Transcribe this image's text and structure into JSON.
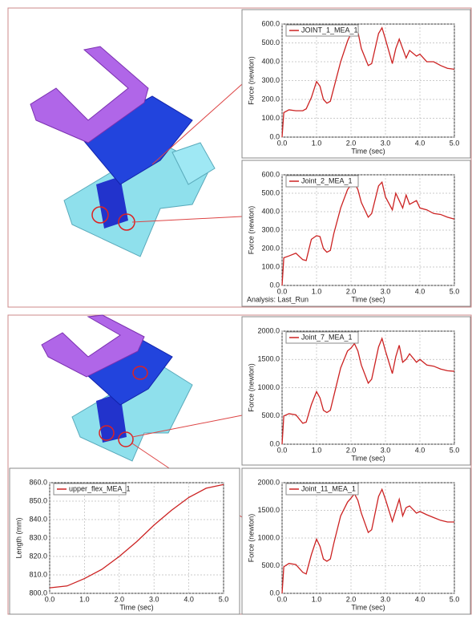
{
  "chart_data": [
    {
      "type": "line",
      "x_label": "Time (sec)",
      "y_label": "Force (newton)",
      "x": [
        0,
        0.05,
        0.2,
        0.4,
        0.6,
        0.7,
        0.85,
        1.0,
        1.1,
        1.2,
        1.3,
        1.4,
        1.5,
        1.7,
        1.9,
        2.0,
        2.1,
        2.2,
        2.3,
        2.5,
        2.6,
        2.8,
        2.9,
        3.0,
        3.2,
        3.3,
        3.4,
        3.5,
        3.6,
        3.7,
        3.9,
        4.0,
        4.2,
        4.4,
        4.6,
        4.8,
        5.0
      ],
      "series": [
        {
          "name": "JOINT_1_MEA_1",
          "color": "#cc2222",
          "values": [
            0,
            130,
            145,
            140,
            140,
            150,
            210,
            295,
            270,
            200,
            180,
            190,
            260,
            400,
            510,
            550,
            570,
            560,
            470,
            380,
            390,
            550,
            580,
            520,
            390,
            470,
            520,
            470,
            420,
            460,
            430,
            440,
            400,
            400,
            380,
            365,
            360
          ]
        }
      ],
      "xlim": [
        0,
        5
      ],
      "ylim": [
        0,
        600
      ],
      "grid": true,
      "xticks": [
        {
          "value": 0,
          "label": "0.0"
        },
        {
          "value": 1,
          "label": "1.0"
        },
        {
          "value": 2,
          "label": "2.0"
        },
        {
          "value": 3,
          "label": "3.0"
        },
        {
          "value": 4,
          "label": "4.0"
        },
        {
          "value": 5,
          "label": "5.0"
        }
      ],
      "yticks": [
        {
          "value": 0,
          "label": "0.0"
        },
        {
          "value": 100,
          "label": "100.0"
        },
        {
          "value": 200,
          "label": "200.0"
        },
        {
          "value": 300,
          "label": "300.0"
        },
        {
          "value": 400,
          "label": "400.0"
        },
        {
          "value": 500,
          "label": "500.0"
        },
        {
          "value": 600,
          "label": "600.0"
        }
      ]
    },
    {
      "type": "line",
      "x_label": "Time (sec)",
      "y_label": "Force (newton)",
      "annotation": "Analysis:  Last_Run",
      "x": [
        0,
        0.05,
        0.2,
        0.4,
        0.6,
        0.7,
        0.85,
        1.0,
        1.1,
        1.2,
        1.3,
        1.4,
        1.5,
        1.7,
        1.9,
        2.0,
        2.1,
        2.2,
        2.3,
        2.5,
        2.6,
        2.8,
        2.9,
        3.0,
        3.2,
        3.3,
        3.4,
        3.5,
        3.6,
        3.7,
        3.9,
        4.0,
        4.2,
        4.4,
        4.6,
        4.8,
        5.0
      ],
      "series": [
        {
          "name": "Joint_2_MEA_1",
          "color": "#cc2222",
          "values": [
            0,
            150,
            160,
            175,
            140,
            135,
            250,
            270,
            265,
            200,
            180,
            190,
            280,
            420,
            520,
            545,
            555,
            520,
            450,
            370,
            390,
            540,
            560,
            480,
            410,
            500,
            460,
            420,
            490,
            440,
            460,
            420,
            410,
            390,
            385,
            370,
            360
          ]
        }
      ],
      "xlim": [
        0,
        5
      ],
      "ylim": [
        0,
        600
      ],
      "grid": true,
      "xticks": [
        {
          "value": 0,
          "label": "0.0"
        },
        {
          "value": 1,
          "label": "1.0"
        },
        {
          "value": 2,
          "label": "2.0"
        },
        {
          "value": 3,
          "label": "3.0"
        },
        {
          "value": 4,
          "label": "4.0"
        },
        {
          "value": 5,
          "label": "5.0"
        }
      ],
      "yticks": [
        {
          "value": 0,
          "label": "0.0"
        },
        {
          "value": 100,
          "label": "100.0"
        },
        {
          "value": 200,
          "label": "200.0"
        },
        {
          "value": 300,
          "label": "300.0"
        },
        {
          "value": 400,
          "label": "400.0"
        },
        {
          "value": 500,
          "label": "500.0"
        },
        {
          "value": 600,
          "label": "600.0"
        }
      ]
    },
    {
      "type": "line",
      "x_label": "Time (sec)",
      "y_label": "Force (newton)",
      "x": [
        0,
        0.05,
        0.2,
        0.4,
        0.6,
        0.7,
        0.85,
        1.0,
        1.1,
        1.2,
        1.3,
        1.4,
        1.5,
        1.7,
        1.9,
        2.0,
        2.1,
        2.2,
        2.3,
        2.5,
        2.6,
        2.8,
        2.9,
        3.0,
        3.2,
        3.3,
        3.4,
        3.5,
        3.6,
        3.7,
        3.9,
        4.0,
        4.2,
        4.4,
        4.6,
        4.8,
        5.0
      ],
      "series": [
        {
          "name": "Joint_7_MEA_1",
          "color": "#cc2222",
          "values": [
            0,
            500,
            540,
            520,
            370,
            390,
            700,
            930,
            820,
            600,
            560,
            600,
            850,
            1350,
            1650,
            1700,
            1780,
            1650,
            1400,
            1080,
            1150,
            1720,
            1870,
            1650,
            1250,
            1550,
            1750,
            1450,
            1500,
            1600,
            1450,
            1500,
            1400,
            1380,
            1330,
            1300,
            1290
          ]
        }
      ],
      "xlim": [
        0,
        5
      ],
      "ylim": [
        0,
        2000
      ],
      "grid": true,
      "xticks": [
        {
          "value": 0,
          "label": "0.0"
        },
        {
          "value": 1,
          "label": "1.0"
        },
        {
          "value": 2,
          "label": "2.0"
        },
        {
          "value": 3,
          "label": "3.0"
        },
        {
          "value": 4,
          "label": "4.0"
        },
        {
          "value": 5,
          "label": "5.0"
        }
      ],
      "yticks": [
        {
          "value": 0,
          "label": "0.0"
        },
        {
          "value": 500,
          "label": "500.0"
        },
        {
          "value": 1000,
          "label": "1000.0"
        },
        {
          "value": 1500,
          "label": "1500.0"
        },
        {
          "value": 2000,
          "label": "2000.0"
        }
      ]
    },
    {
      "type": "line",
      "x_label": "Time (sec)",
      "y_label": "Length (mm)",
      "x": [
        0,
        0.5,
        1,
        1.5,
        2,
        2.5,
        3,
        3.5,
        4,
        4.5,
        5
      ],
      "series": [
        {
          "name": "upper_flex_MEA_1",
          "color": "#cc2222",
          "values": [
            803,
            804,
            808,
            813,
            820,
            828,
            837,
            845,
            852,
            857,
            859
          ]
        }
      ],
      "xlim": [
        0,
        5
      ],
      "ylim": [
        800,
        860
      ],
      "grid": true,
      "xticks": [
        {
          "value": 0,
          "label": "0.0"
        },
        {
          "value": 1,
          "label": "1.0"
        },
        {
          "value": 2,
          "label": "2.0"
        },
        {
          "value": 3,
          "label": "3.0"
        },
        {
          "value": 4,
          "label": "4.0"
        },
        {
          "value": 5,
          "label": "5.0"
        }
      ],
      "yticks": [
        {
          "value": 800,
          "label": "800.0"
        },
        {
          "value": 810,
          "label": "810.0"
        },
        {
          "value": 820,
          "label": "820.0"
        },
        {
          "value": 830,
          "label": "830.0"
        },
        {
          "value": 840,
          "label": "840.0"
        },
        {
          "value": 850,
          "label": "850.0"
        },
        {
          "value": 860,
          "label": "860.0"
        }
      ]
    },
    {
      "type": "line",
      "x_label": "Time (sec)",
      "y_label": "Force (newton)",
      "x": [
        0,
        0.05,
        0.2,
        0.4,
        0.6,
        0.7,
        0.85,
        1.0,
        1.1,
        1.2,
        1.3,
        1.4,
        1.5,
        1.7,
        1.9,
        2.0,
        2.1,
        2.2,
        2.3,
        2.5,
        2.6,
        2.8,
        2.9,
        3.0,
        3.2,
        3.3,
        3.4,
        3.5,
        3.6,
        3.7,
        3.9,
        4.0,
        4.2,
        4.4,
        4.6,
        4.8,
        5.0
      ],
      "series": [
        {
          "name": "Joint_11_MEA_1",
          "color": "#cc2222",
          "values": [
            0,
            480,
            540,
            520,
            380,
            350,
            700,
            980,
            850,
            620,
            580,
            620,
            900,
            1400,
            1650,
            1720,
            1800,
            1680,
            1450,
            1100,
            1150,
            1750,
            1880,
            1700,
            1300,
            1500,
            1700,
            1400,
            1550,
            1580,
            1450,
            1480,
            1420,
            1370,
            1320,
            1290,
            1290
          ]
        }
      ],
      "xlim": [
        0,
        5
      ],
      "ylim": [
        0,
        2000
      ],
      "grid": true,
      "xticks": [
        {
          "value": 0,
          "label": "0.0"
        },
        {
          "value": 1,
          "label": "1.0"
        },
        {
          "value": 2,
          "label": "2.0"
        },
        {
          "value": 3,
          "label": "3.0"
        },
        {
          "value": 4,
          "label": "4.0"
        },
        {
          "value": 5,
          "label": "5.0"
        }
      ],
      "yticks": [
        {
          "value": 0,
          "label": "0.0"
        },
        {
          "value": 500,
          "label": "500.0"
        },
        {
          "value": 1000,
          "label": "1000.0"
        },
        {
          "value": 1500,
          "label": "1500.0"
        },
        {
          "value": 2000,
          "label": "2000.0"
        }
      ]
    }
  ]
}
